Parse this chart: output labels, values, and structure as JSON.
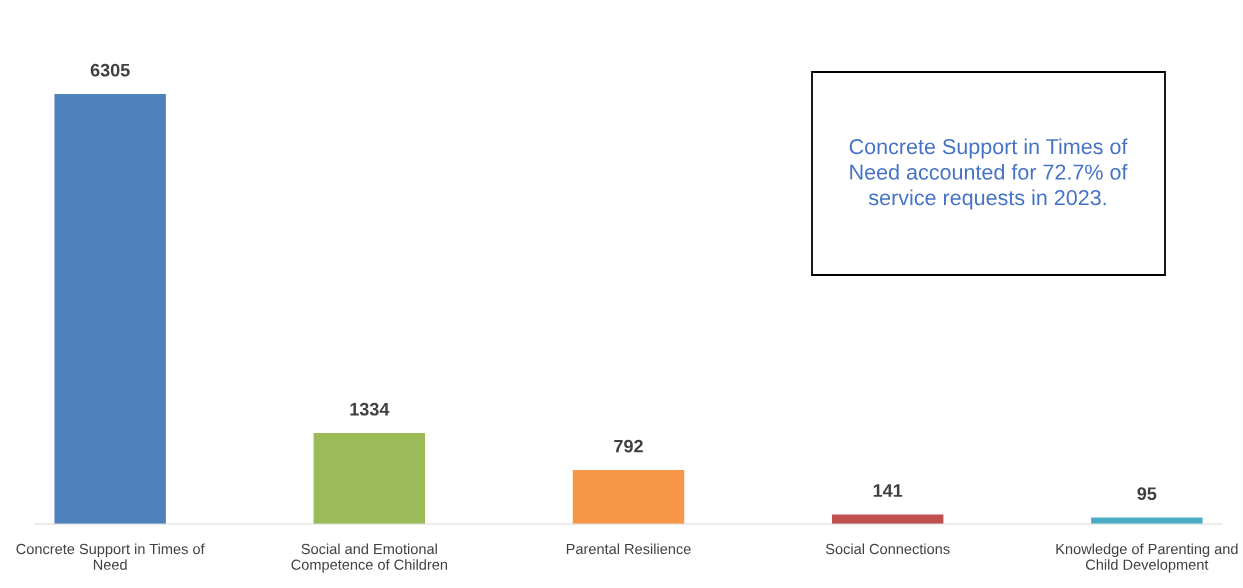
{
  "chart_data": {
    "type": "bar",
    "categories": [
      "Concrete Support in Times of Need",
      "Social and Emotional Competence of Children",
      "Parental Resilience",
      "Social Connections",
      "Knowledge of Parenting and Child Development"
    ],
    "values": [
      6305,
      1334,
      792,
      141,
      95
    ],
    "colors": [
      "#4f81bd",
      "#9bbb59",
      "#f79646",
      "#c0504d",
      "#4bacc6"
    ],
    "data_labels": true,
    "annotations": [
      "Concrete Support in Times of Need accounted for 72.7% of service requests in 2023."
    ],
    "grid": false,
    "legend": false
  }
}
